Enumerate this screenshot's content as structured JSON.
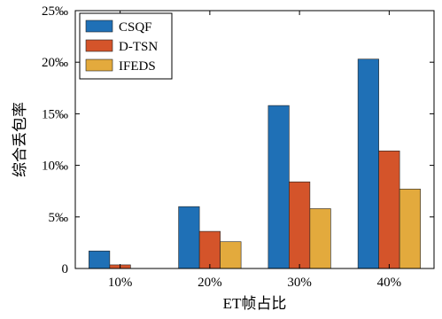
{
  "chart_data": {
    "type": "bar",
    "title": "",
    "xlabel": "ET帧占比",
    "ylabel": "综合丢包率",
    "categories": [
      "10%",
      "20%",
      "30%",
      "40%"
    ],
    "ylim": [
      0,
      25
    ],
    "y_ticks": [
      0,
      5,
      10,
      15,
      20,
      25
    ],
    "y_tick_labels": [
      "0",
      "5‰",
      "10‰",
      "15‰",
      "20‰",
      "25‰"
    ],
    "unit": "‰",
    "grid": false,
    "legend_position": "top-left",
    "series": [
      {
        "name": "CSQF",
        "color": "#1f70b6",
        "values": [
          1.7,
          6.0,
          15.8,
          20.3
        ]
      },
      {
        "name": "D-TSN",
        "color": "#d4542a",
        "values": [
          0.35,
          3.6,
          8.4,
          11.4
        ]
      },
      {
        "name": "IFEDS",
        "color": "#e3aa3d",
        "values": [
          0,
          2.6,
          5.8,
          7.7
        ]
      }
    ]
  }
}
